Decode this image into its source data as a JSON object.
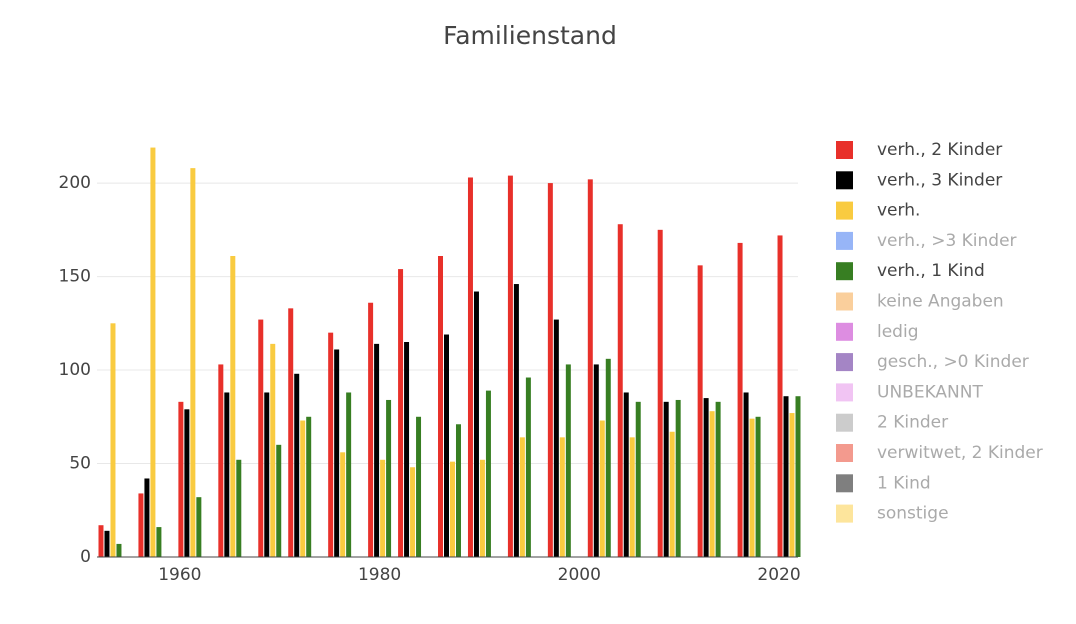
{
  "chart_data": {
    "type": "bar",
    "title": "Familienstand",
    "x": [
      1953,
      1957,
      1961,
      1965,
      1969,
      1972,
      1976,
      1980,
      1983,
      1987,
      1990,
      1994,
      1998,
      2002,
      2005,
      2009,
      2013,
      2017,
      2021
    ],
    "series": [
      {
        "name": "verh., 2 Kinder",
        "color": "#e8302a",
        "values": [
          17,
          34,
          83,
          103,
          127,
          133,
          120,
          136,
          154,
          161,
          203,
          204,
          200,
          202,
          178,
          175,
          156,
          168,
          172
        ]
      },
      {
        "name": "verh., 3 Kinder",
        "color": "#000000",
        "values": [
          14,
          42,
          79,
          88,
          88,
          98,
          111,
          114,
          115,
          119,
          142,
          146,
          127,
          103,
          88,
          83,
          85,
          88,
          86
        ]
      },
      {
        "name": "verh.",
        "color": "#f9cb40",
        "values": [
          125,
          219,
          208,
          161,
          114,
          73,
          56,
          52,
          48,
          51,
          52,
          64,
          64,
          73,
          64,
          67,
          78,
          74,
          77
        ]
      },
      {
        "name": "verh., >3 Kinder",
        "color": "#2f6cf0",
        "hidden": true
      },
      {
        "name": "verh., 1 Kind",
        "color": "#377e22",
        "values": [
          7,
          16,
          32,
          52,
          60,
          75,
          88,
          84,
          75,
          71,
          89,
          96,
          103,
          106,
          83,
          84,
          83,
          75,
          86
        ]
      },
      {
        "name": "keine Angaben",
        "color": "#f5a03a",
        "hidden": true
      },
      {
        "name": "ledig",
        "color": "#bb1cc4",
        "hidden": true
      },
      {
        "name": "gesch., >0 Kinder",
        "color": "#4a0c8c",
        "hidden": true
      },
      {
        "name": "UNBEKANNT",
        "color": "#e389e8",
        "hidden": true
      },
      {
        "name": "2 Kinder",
        "color": "#9a9a9a",
        "hidden": true
      },
      {
        "name": "verwitwet, 2 Kinder",
        "color": "#e8361e",
        "hidden": true
      },
      {
        "name": "1 Kind",
        "color": "#000000",
        "hidden": true
      },
      {
        "name": "sonstige",
        "color": "#fbcb3a",
        "hidden": true
      }
    ],
    "xlim": [
      1951.7,
      2021.9
    ],
    "xticks": [
      1960,
      1980,
      2000,
      2020
    ],
    "ylim": [
      0,
      230
    ],
    "yticks": [
      0,
      50,
      100,
      150,
      200
    ],
    "grid": true
  }
}
